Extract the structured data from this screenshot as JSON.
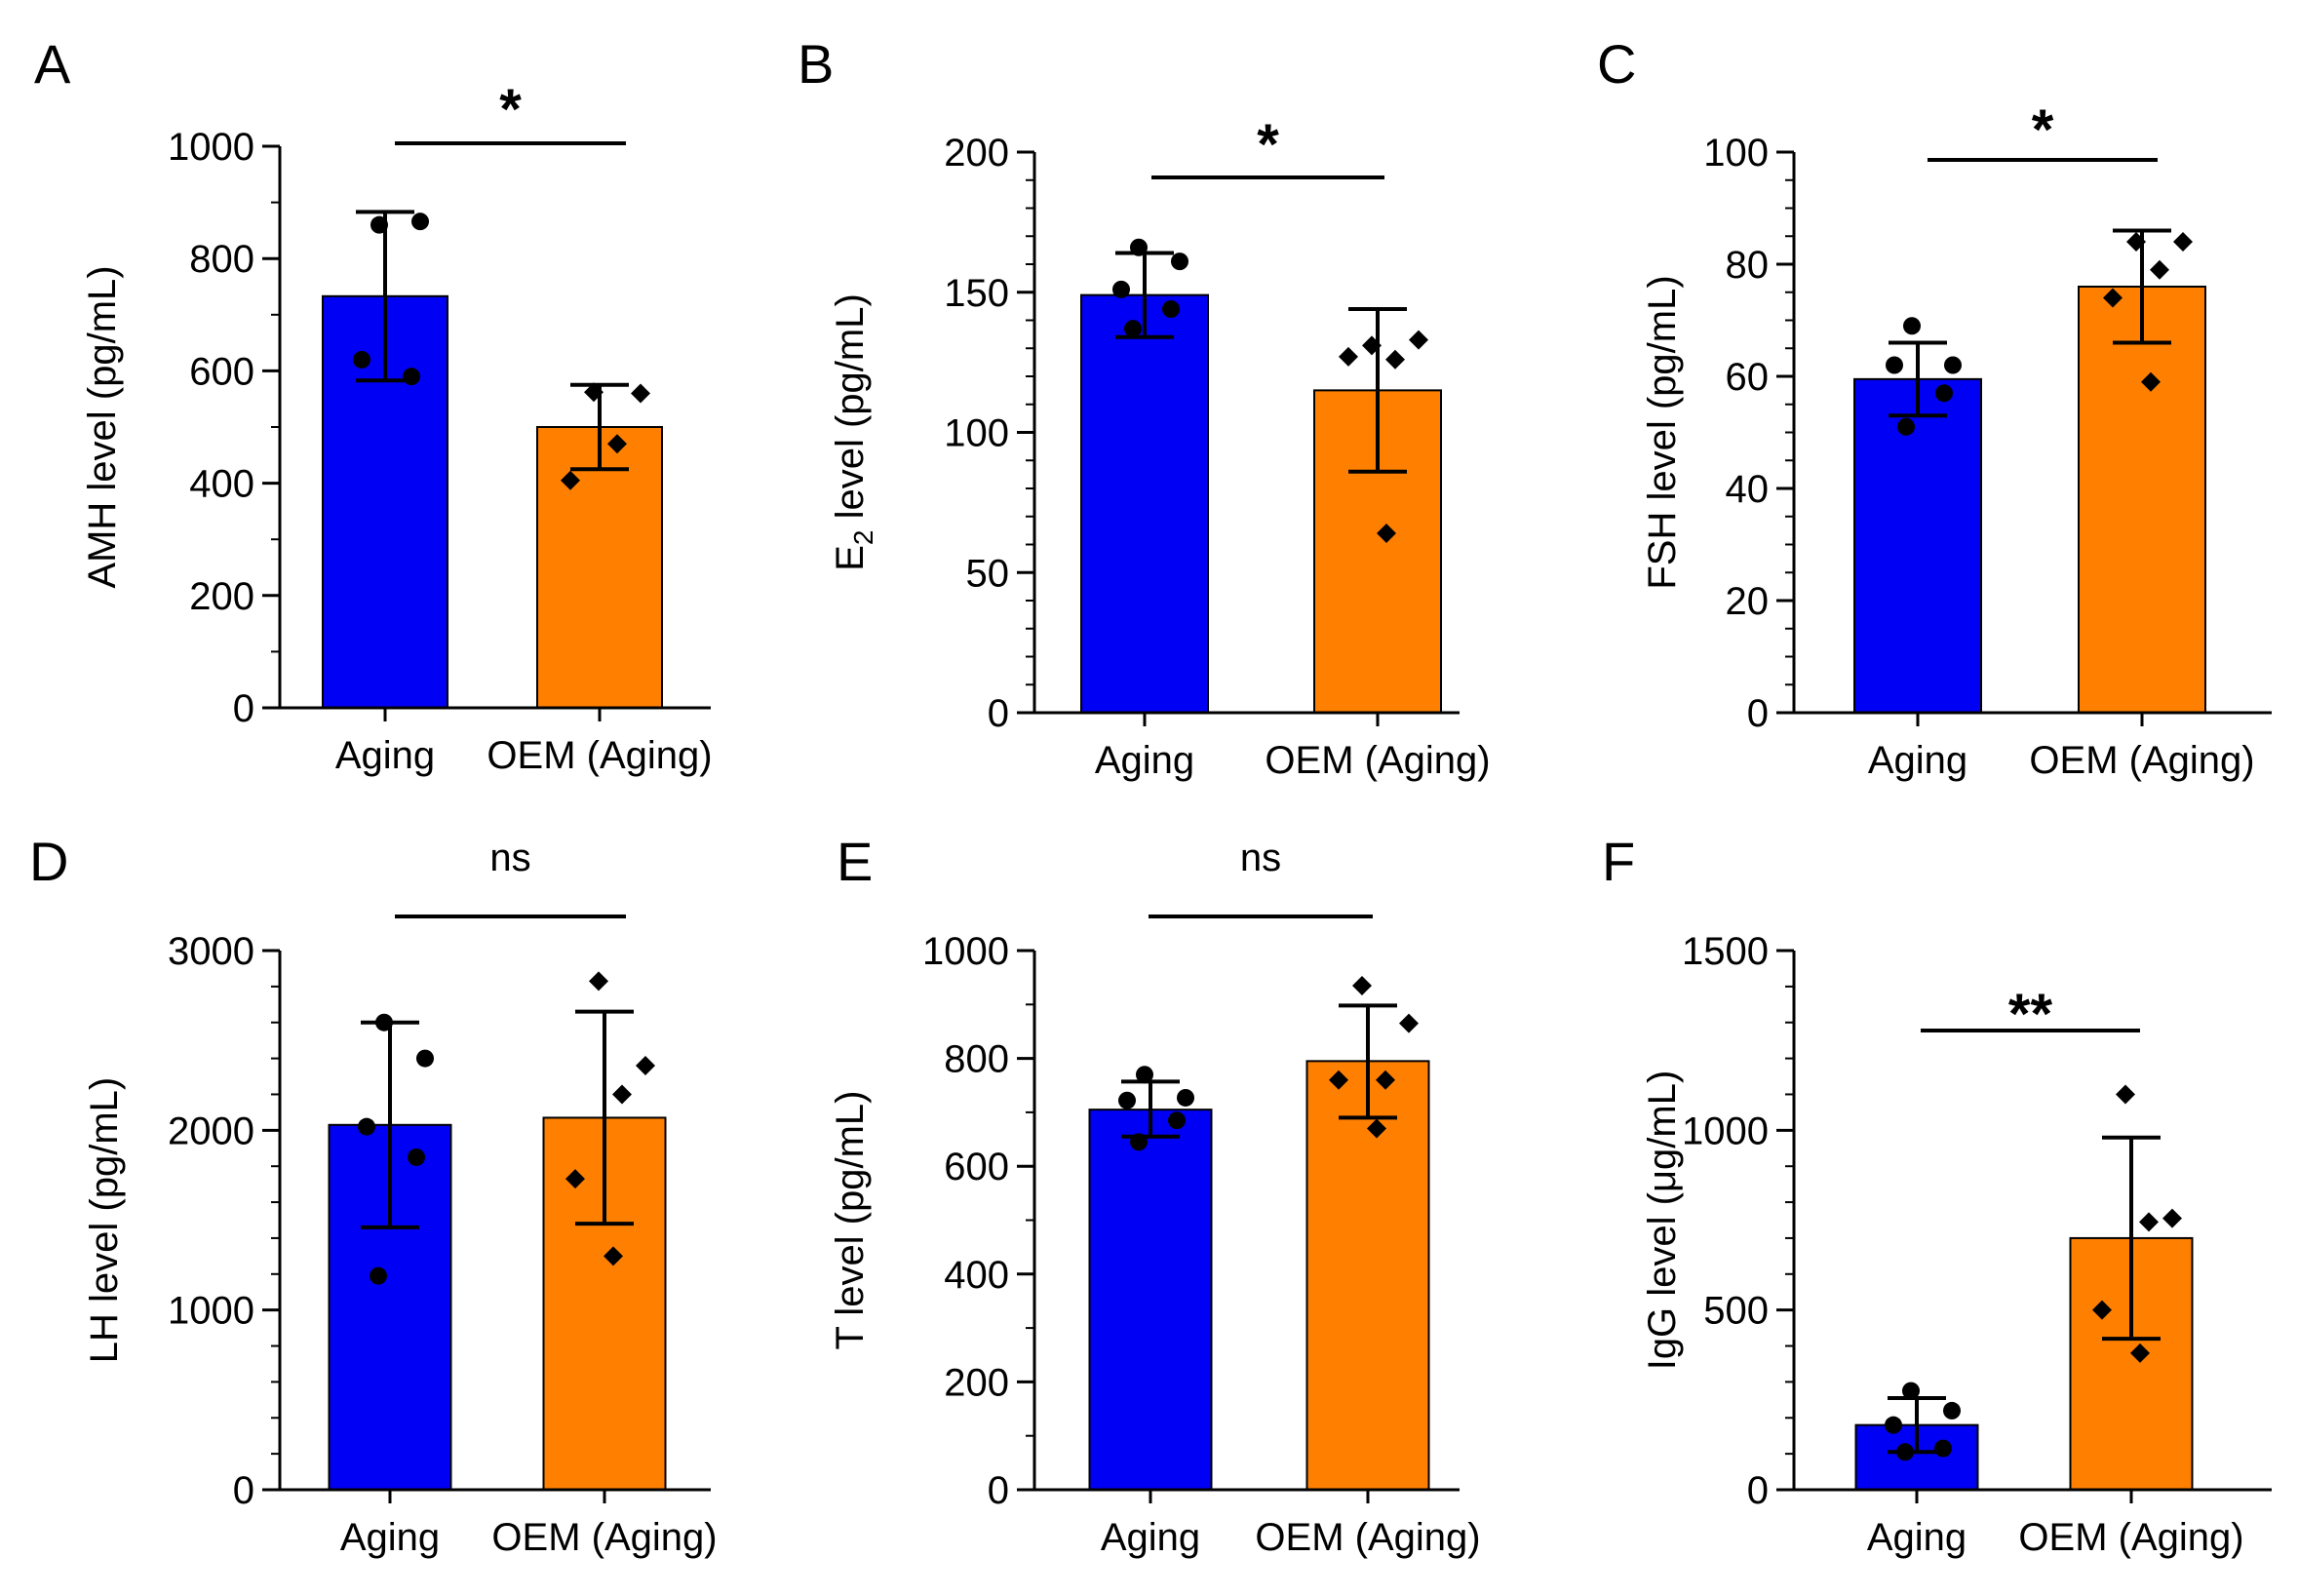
{
  "colors": {
    "aging": "#0000F5",
    "oem": "#FF8000",
    "ink": "#000000"
  },
  "chart_data": [
    {
      "panel": "A",
      "type": "bar",
      "categories": [
        "Aging",
        "OEM (Aging)"
      ],
      "values": [
        733,
        500
      ],
      "error": [
        [
          583,
          883
        ],
        [
          425,
          575
        ]
      ],
      "points": [
        [
          860,
          866,
          620,
          590
        ],
        [
          562,
          560,
          470,
          405
        ]
      ],
      "markers": [
        "circle",
        "diamond"
      ],
      "ylabel": "AMH level (pg/mL)",
      "ylabel_sub": "",
      "ylabel_suffix": "",
      "ylim": [
        0,
        1000
      ],
      "yticks": [
        0,
        200,
        400,
        600,
        800,
        1000
      ],
      "minor_step": 100,
      "significance": "*"
    },
    {
      "panel": "B",
      "type": "bar",
      "categories": [
        "Aging",
        "OEM (Aging)"
      ],
      "values": [
        149,
        115
      ],
      "error": [
        [
          134,
          164
        ],
        [
          86,
          144
        ]
      ],
      "points": [
        [
          166,
          161,
          151,
          144,
          137
        ],
        [
          131,
          133,
          126,
          127,
          64
        ]
      ],
      "markers": [
        "circle",
        "diamond"
      ],
      "ylabel": "E",
      "ylabel_sub": "2",
      "ylabel_suffix": " level (pg/mL)",
      "ylim": [
        0,
        200
      ],
      "yticks": [
        0,
        50,
        100,
        150,
        200
      ],
      "minor_step": 10,
      "significance": "*"
    },
    {
      "panel": "C",
      "type": "bar",
      "categories": [
        "Aging",
        "OEM (Aging)"
      ],
      "values": [
        59.5,
        76
      ],
      "error": [
        [
          53,
          66
        ],
        [
          66,
          86
        ]
      ],
      "points": [
        [
          69,
          62,
          62,
          57,
          51
        ],
        [
          84,
          84,
          79,
          74,
          59
        ]
      ],
      "markers": [
        "circle",
        "diamond"
      ],
      "ylabel": "FSH level (pg/mL)",
      "ylabel_sub": "",
      "ylabel_suffix": "",
      "ylim": [
        0,
        100
      ],
      "yticks": [
        0,
        20,
        40,
        60,
        80,
        100
      ],
      "minor_step": 5,
      "significance": "*"
    },
    {
      "panel": "D",
      "type": "bar",
      "categories": [
        "Aging",
        "OEM (Aging)"
      ],
      "values": [
        2030,
        2070
      ],
      "error": [
        [
          1460,
          2600
        ],
        [
          1480,
          2660
        ]
      ],
      "points": [
        [
          2600,
          2400,
          2020,
          1850,
          1190
        ],
        [
          2830,
          2360,
          2200,
          1730,
          1300
        ]
      ],
      "markers": [
        "circle",
        "diamond"
      ],
      "ylabel": "LH level (pg/mL)",
      "ylabel_sub": "",
      "ylabel_suffix": "",
      "ylim": [
        0,
        3000
      ],
      "yticks": [
        0,
        1000,
        2000,
        3000
      ],
      "minor_step": 200,
      "significance": "ns"
    },
    {
      "panel": "E",
      "type": "bar",
      "categories": [
        "Aging",
        "OEM (Aging)"
      ],
      "values": [
        705,
        795
      ],
      "error": [
        [
          655,
          757
        ],
        [
          690,
          898
        ]
      ],
      "points": [
        [
          770,
          727,
          722,
          685,
          645
        ],
        [
          935,
          865,
          760,
          760,
          670
        ]
      ],
      "markers": [
        "circle",
        "diamond"
      ],
      "ylabel": "T level (pg/mL)",
      "ylabel_sub": "",
      "ylabel_suffix": "",
      "ylim": [
        0,
        1000
      ],
      "yticks": [
        0,
        200,
        400,
        600,
        800,
        1000
      ],
      "minor_step": 100,
      "significance": "ns"
    },
    {
      "panel": "F",
      "type": "bar",
      "categories": [
        "Aging",
        "OEM (Aging)"
      ],
      "values": [
        180,
        700
      ],
      "error": [
        [
          105,
          255
        ],
        [
          420,
          980
        ]
      ],
      "points": [
        [
          275,
          220,
          180,
          115,
          105
        ],
        [
          1100,
          755,
          745,
          500,
          380
        ]
      ],
      "markers": [
        "circle",
        "diamond"
      ],
      "ylabel": "IgG level (μg/mL)",
      "ylabel_sub": "",
      "ylabel_suffix": "",
      "ylim": [
        0,
        1500
      ],
      "yticks": [
        0,
        500,
        1000,
        1500
      ],
      "minor_step": 100,
      "significance": "**"
    }
  ]
}
